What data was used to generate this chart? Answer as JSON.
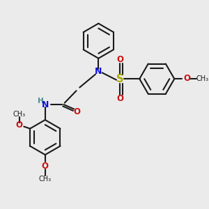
{
  "background_color": "#ebebeb",
  "bond_color": "#1a1a1a",
  "n_color": "#1010dd",
  "o_color": "#cc1010",
  "s_color": "#aaaa00",
  "h_color": "#4a8a8a",
  "figsize": [
    3.0,
    3.0
  ],
  "dpi": 100,
  "xlim": [
    0,
    10
  ],
  "ylim": [
    0,
    10
  ]
}
